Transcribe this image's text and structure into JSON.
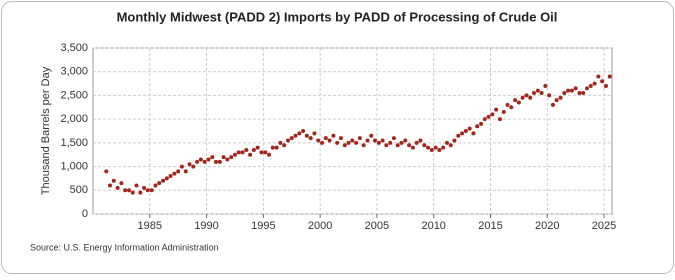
{
  "chart_data": {
    "type": "scatter",
    "title": "Monthly Midwest (PADD 2) Imports by PADD of Processing of Crude Oil",
    "y_label": "Thousand Barrels per Day",
    "source": "Source: U.S. Energy Information Administration",
    "color": "#a3261b",
    "grid": true,
    "xlim": [
      1980,
      2025.7
    ],
    "ylim": [
      0,
      3500
    ],
    "xticks": [
      1985,
      1990,
      1995,
      2000,
      2005,
      2010,
      2015,
      2020,
      2025
    ],
    "yticks": [
      0,
      500,
      {
        "value": 1000,
        "label": "1,000"
      },
      {
        "value": 1500,
        "label": "1,500"
      },
      {
        "value": 2000,
        "label": "2,000"
      },
      {
        "value": 2500,
        "label": "2,500"
      },
      {
        "value": 3000,
        "label": "3,000"
      },
      {
        "value": 3500,
        "label": "3,500"
      }
    ],
    "x": [
      1981.17,
      1981.5,
      1981.83,
      1982.17,
      1982.5,
      1982.83,
      1983.17,
      1983.5,
      1983.83,
      1984.17,
      1984.5,
      1984.83,
      1985.17,
      1985.5,
      1985.83,
      1986.17,
      1986.5,
      1986.83,
      1987.17,
      1987.5,
      1987.83,
      1988.17,
      1988.5,
      1988.83,
      1989.17,
      1989.5,
      1989.83,
      1990.17,
      1990.5,
      1990.83,
      1991.17,
      1991.5,
      1991.83,
      1992.17,
      1992.5,
      1992.83,
      1993.17,
      1993.5,
      1993.83,
      1994.17,
      1994.5,
      1994.83,
      1995.17,
      1995.5,
      1995.83,
      1996.17,
      1996.5,
      1996.83,
      1997.17,
      1997.5,
      1997.83,
      1998.17,
      1998.5,
      1998.83,
      1999.17,
      1999.5,
      1999.83,
      2000.17,
      2000.5,
      2000.83,
      2001.17,
      2001.5,
      2001.83,
      2002.17,
      2002.5,
      2002.83,
      2003.17,
      2003.5,
      2003.83,
      2004.17,
      2004.5,
      2004.83,
      2005.17,
      2005.5,
      2005.83,
      2006.17,
      2006.5,
      2006.83,
      2007.17,
      2007.5,
      2007.83,
      2008.17,
      2008.5,
      2008.83,
      2009.17,
      2009.5,
      2009.83,
      2010.17,
      2010.5,
      2010.83,
      2011.17,
      2011.5,
      2011.83,
      2012.17,
      2012.5,
      2012.83,
      2013.17,
      2013.5,
      2013.83,
      2014.17,
      2014.5,
      2014.83,
      2015.17,
      2015.5,
      2015.83,
      2016.17,
      2016.5,
      2016.83,
      2017.17,
      2017.5,
      2017.83,
      2018.17,
      2018.5,
      2018.83,
      2019.17,
      2019.5,
      2019.83,
      2020.17,
      2020.5,
      2020.83,
      2021.17,
      2021.5,
      2021.83,
      2022.17,
      2022.5,
      2022.83,
      2023.17,
      2023.5,
      2023.83,
      2024.17,
      2024.5,
      2024.83,
      2025.17,
      2025.5
    ],
    "values": [
      900,
      600,
      700,
      550,
      650,
      500,
      500,
      450,
      600,
      450,
      550,
      500,
      500,
      600,
      650,
      700,
      750,
      800,
      850,
      900,
      1000,
      900,
      1050,
      1000,
      1100,
      1150,
      1100,
      1150,
      1200,
      1100,
      1100,
      1200,
      1150,
      1200,
      1250,
      1300,
      1300,
      1350,
      1250,
      1350,
      1400,
      1300,
      1300,
      1250,
      1400,
      1400,
      1500,
      1450,
      1550,
      1600,
      1650,
      1700,
      1750,
      1650,
      1600,
      1700,
      1550,
      1500,
      1600,
      1550,
      1650,
      1500,
      1600,
      1450,
      1500,
      1550,
      1500,
      1600,
      1450,
      1550,
      1650,
      1550,
      1500,
      1550,
      1450,
      1500,
      1600,
      1450,
      1500,
      1550,
      1450,
      1400,
      1500,
      1550,
      1450,
      1400,
      1350,
      1400,
      1350,
      1400,
      1500,
      1450,
      1550,
      1650,
      1700,
      1750,
      1800,
      1700,
      1850,
      1900,
      2000,
      2050,
      2100,
      2200,
      2000,
      2150,
      2300,
      2250,
      2400,
      2350,
      2450,
      2500,
      2450,
      2550,
      2600,
      2550,
      2700,
      2500,
      2300,
      2400,
      2450,
      2550,
      2600,
      2600,
      2650,
      2550,
      2550,
      2650,
      2700,
      2750,
      2900,
      2800,
      2700,
      2900
    ]
  }
}
